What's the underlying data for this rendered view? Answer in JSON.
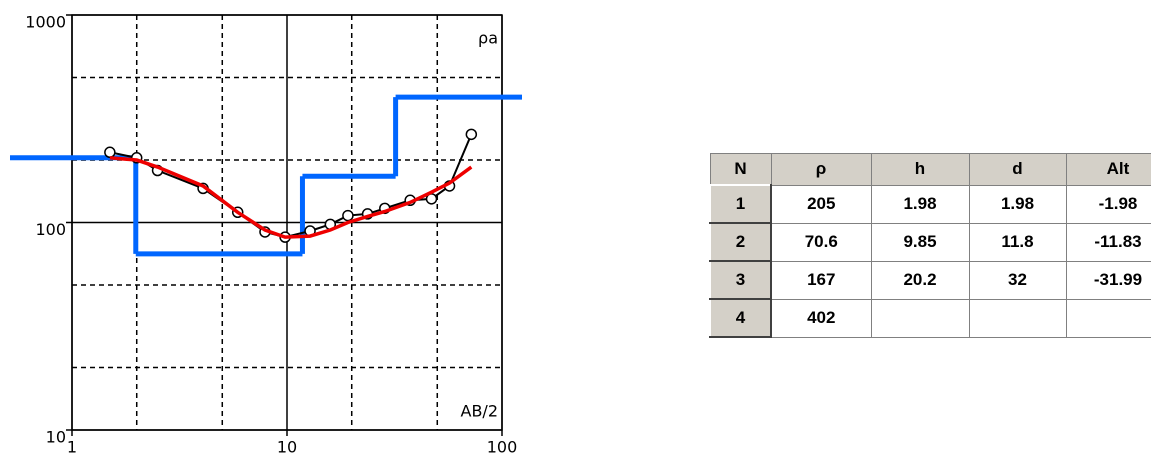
{
  "chart_data": {
    "type": "line",
    "log_x": true,
    "log_y": true,
    "xlim": [
      1,
      100
    ],
    "ylim": [
      10,
      1000
    ],
    "xticks": [
      1,
      10,
      100
    ],
    "yticks": [
      10,
      100,
      1000
    ],
    "minor_xticks": [
      2,
      5,
      20,
      50
    ],
    "minor_yticks": [
      20,
      50,
      200,
      500
    ],
    "x_label": "AB/2",
    "y_label": "ρa",
    "x": [
      1.5,
      2,
      2.5,
      4.07,
      5.9,
      7.9,
      9.8,
      12.8,
      15.9,
      19.2,
      23.7,
      28.5,
      37.4,
      47,
      57,
      72
    ],
    "series": [
      {
        "color": "#000000",
        "markers": true,
        "values": [
          218,
          205,
          178,
          146,
          112,
          90,
          85,
          91,
          98,
          108,
          110,
          117,
          128,
          130,
          150,
          266
        ]
      },
      {
        "color": "#ee0000",
        "markers": false,
        "values": [
          205,
          200,
          185,
          150,
          112,
          92,
          85,
          86,
          92,
          100,
          107,
          113,
          125,
          140,
          155,
          185
        ]
      }
    ],
    "model_color": "#0066ff"
  },
  "table": {
    "header": [
      "N",
      "ρ",
      "h",
      "d",
      "Alt"
    ],
    "rows": [
      [
        1,
        205,
        1.98,
        1.98,
        -1.98
      ],
      [
        2,
        70.6,
        9.85,
        11.8,
        -11.83
      ],
      [
        3,
        167,
        20.2,
        32,
        -31.99
      ],
      [
        4,
        402
      ]
    ]
  }
}
